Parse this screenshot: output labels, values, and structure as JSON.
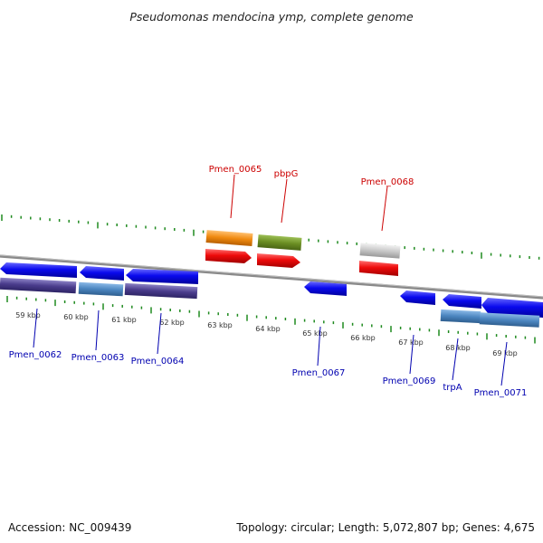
{
  "title": "Pseudomonas mendocina ymp, complete genome",
  "footer": {
    "accession": "Accession: NC_009439",
    "summary": "Topology: circular; Length: 5,072,807 bp; Genes: 4,675"
  },
  "colors": {
    "backbone": "#8a8a8a",
    "tick": "#1f8a1f",
    "kbp_label": "#333333",
    "label_red": "#cc0000",
    "label_blue": "#0000b0",
    "blue": "#0a0aee",
    "steelblue": "#4c86c0",
    "purple": "#4a3c8c",
    "orange": "#f08a10",
    "olive": "#6b8e23",
    "red": "#ee0b0b",
    "gray": "#c8c8c8"
  },
  "kbp_labels": [
    "59 kbp",
    "60 kbp",
    "61 kbp",
    "62 kbp",
    "63 kbp",
    "64 kbp",
    "65 kbp",
    "66 kbp",
    "67 kbp",
    "68 kbp",
    "69 kbp"
  ],
  "genes": [
    {
      "name": "pbpG-gene"
    },
    {
      "name": "pmen-0065-gene"
    },
    {
      "name": "pmen-0068-gene"
    }
  ],
  "labels_top": [
    "Pmen_0065",
    "pbpG",
    "Pmen_0068"
  ],
  "labels_bottom": [
    "Pmen_0062",
    "Pmen_0063",
    "Pmen_0064",
    "Pmen_0067",
    "Pmen_0069",
    "trpA",
    "Pmen_0071"
  ]
}
